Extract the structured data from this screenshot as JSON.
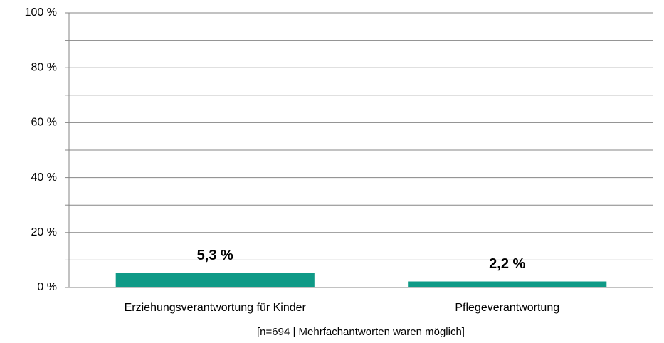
{
  "chart_data": {
    "type": "bar",
    "categories": [
      "Erziehungsverantwortung für Kinder",
      "Pflegeverantwortung"
    ],
    "values": [
      5.3,
      2.2
    ],
    "value_labels": [
      "5,3 %",
      "2,2 %"
    ],
    "color": "#0f9a87",
    "ylim": [
      0,
      100
    ],
    "yticks": [
      {
        "value": 0,
        "label": "0 %"
      },
      {
        "value": 20,
        "label": "20 %"
      },
      {
        "value": 40,
        "label": "40 %"
      },
      {
        "value": 60,
        "label": "60 %"
      },
      {
        "value": 80,
        "label": "80 %"
      },
      {
        "value": 100,
        "label": "100 %"
      }
    ],
    "minor_yticks": [
      10,
      30,
      50,
      70,
      90
    ],
    "grid": true,
    "x_label": "[n=694 | Mehrfachantworten waren möglich]"
  }
}
